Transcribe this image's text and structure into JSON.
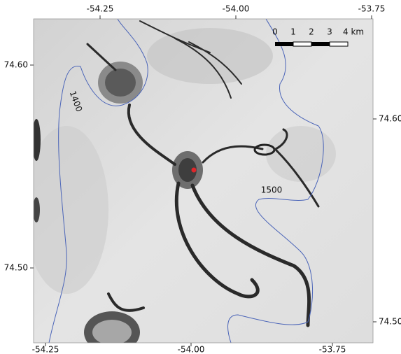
{
  "map": {
    "axes": {
      "top": [
        "-54.25",
        "-54.00",
        "-53.75"
      ],
      "bottom": [
        "-54.25",
        "-54.00",
        "-53.75"
      ],
      "left": [
        "74.60",
        "74.50"
      ],
      "right": [
        "74.60",
        "74.50"
      ]
    },
    "scale_bar": {
      "labels": [
        "0",
        "1",
        "2",
        "3",
        "4 km"
      ]
    },
    "contours": [
      {
        "label": "1400"
      },
      {
        "label": "1500"
      }
    ]
  }
}
